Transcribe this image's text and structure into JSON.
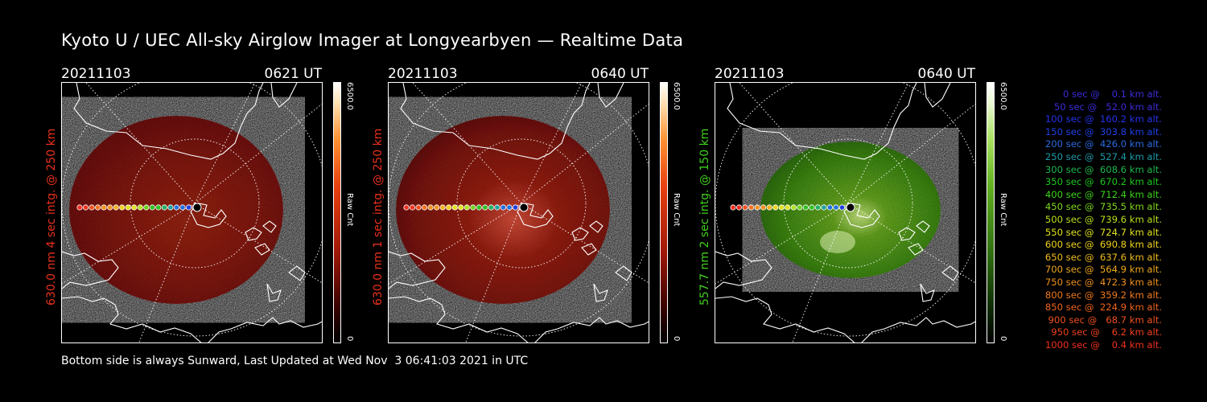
{
  "title": "Kyoto U / UEC All-sky Airglow Imager at Longyearbyen — Realtime Data",
  "panels": [
    {
      "date": "20211103",
      "time": "0621 UT",
      "ylabel": "630.0 nm 4 sec intg. @ 250 km",
      "ylabel_color": "#e8301c",
      "cbar_max": "6500.0",
      "cbar_min": "0",
      "cbar_unit": "Raw Cnt",
      "theme": "red"
    },
    {
      "date": "20211103",
      "time": "0640 UT",
      "ylabel": "630.0 nm 1 sec intg. @ 250 km",
      "ylabel_color": "#e8301c",
      "cbar_max": "6500.0",
      "cbar_min": "0",
      "cbar_unit": "Raw Cnt",
      "theme": "red"
    },
    {
      "date": "20211103",
      "time": "0640 UT",
      "ylabel": "557.7 nm 2 sec intg. @ 150 km",
      "ylabel_color": "#3fd01c",
      "cbar_max": "6500.0",
      "cbar_min": "0",
      "cbar_unit": "Raw Cnt",
      "theme": "green"
    }
  ],
  "legend": [
    {
      "text": "   0 sec @    0.1 km alt.",
      "color": "#3a2cd8"
    },
    {
      "text": "  50 sec @   52.0 km alt.",
      "color": "#3a2cd8"
    },
    {
      "text": " 100 sec @  160.2 km alt.",
      "color": "#2433e8"
    },
    {
      "text": " 150 sec @  303.8 km alt.",
      "color": "#2040e8"
    },
    {
      "text": " 200 sec @  426.0 km alt.",
      "color": "#2a6ae0"
    },
    {
      "text": " 250 sec @  527.4 km alt.",
      "color": "#1c9aa8"
    },
    {
      "text": " 300 sec @  608.6 km alt.",
      "color": "#1cb84c"
    },
    {
      "text": " 350 sec @  670.2 km alt.",
      "color": "#1cc81c"
    },
    {
      "text": " 400 sec @  712.4 km alt.",
      "color": "#3ed41c"
    },
    {
      "text": " 450 sec @  735.5 km alt.",
      "color": "#7ed81c"
    },
    {
      "text": " 500 sec @  739.6 km alt.",
      "color": "#b8e01c"
    },
    {
      "text": " 550 sec @  724.7 km alt.",
      "color": "#e0e41c"
    },
    {
      "text": " 600 sec @  690.8 km alt.",
      "color": "#f0d41c"
    },
    {
      "text": " 650 sec @  637.6 km alt.",
      "color": "#f0bc1c"
    },
    {
      "text": " 700 sec @  564.9 km alt.",
      "color": "#f0a81c"
    },
    {
      "text": " 750 sec @  472.3 km alt.",
      "color": "#f0901c"
    },
    {
      "text": " 800 sec @  359.2 km alt.",
      "color": "#f07a1c"
    },
    {
      "text": " 850 sec @  224.9 km alt.",
      "color": "#f0641c"
    },
    {
      "text": " 900 sec @   68.7 km alt.",
      "color": "#f0501c"
    },
    {
      "text": " 950 sec @    6.2 km alt.",
      "color": "#f0401c"
    },
    {
      "text": "1000 sec @    0.4 km alt.",
      "color": "#f0301c"
    }
  ],
  "footer": "Bottom side is always Sunward, Last Updated at Wed Nov  3 06:41:03 2021 in UTC"
}
